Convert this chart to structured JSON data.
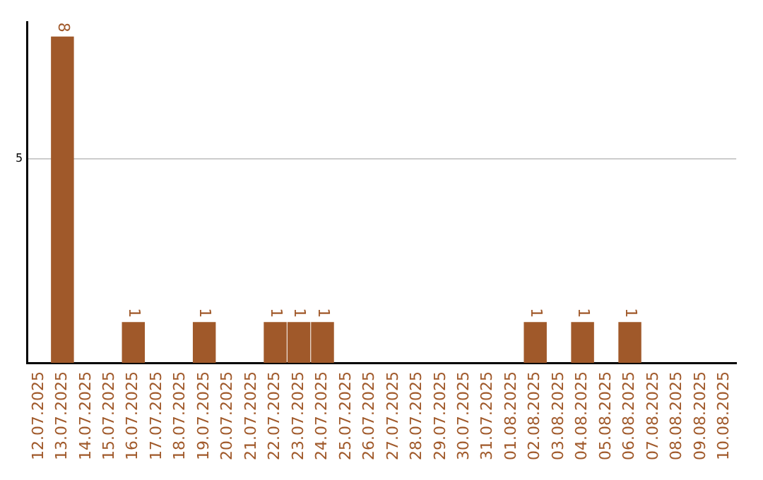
{
  "chart_data": {
    "type": "bar",
    "categories": [
      "12.07.2025",
      "13.07.2025",
      "14.07.2025",
      "15.07.2025",
      "16.07.2025",
      "17.07.2025",
      "18.07.2025",
      "19.07.2025",
      "20.07.2025",
      "21.07.2025",
      "22.07.2025",
      "23.07.2025",
      "24.07.2025",
      "25.07.2025",
      "26.07.2025",
      "27.07.2025",
      "28.07.2025",
      "29.07.2025",
      "30.07.2025",
      "31.07.2025",
      "01.08.2025",
      "02.08.2025",
      "03.08.2025",
      "04.08.2025",
      "05.08.2025",
      "06.08.2025",
      "07.08.2025",
      "08.08.2025",
      "09.08.2025",
      "10.08.2025"
    ],
    "values": [
      null,
      8,
      null,
      null,
      1,
      null,
      null,
      1,
      null,
      null,
      1,
      1,
      1,
      null,
      null,
      null,
      null,
      null,
      null,
      null,
      null,
      1,
      null,
      1,
      null,
      1,
      null,
      null,
      null,
      null
    ],
    "color": "#a0592a",
    "ylim": [
      0,
      8.35
    ],
    "yticks": [
      5
    ],
    "grid": "y",
    "data_labels": true,
    "legend": false
  }
}
